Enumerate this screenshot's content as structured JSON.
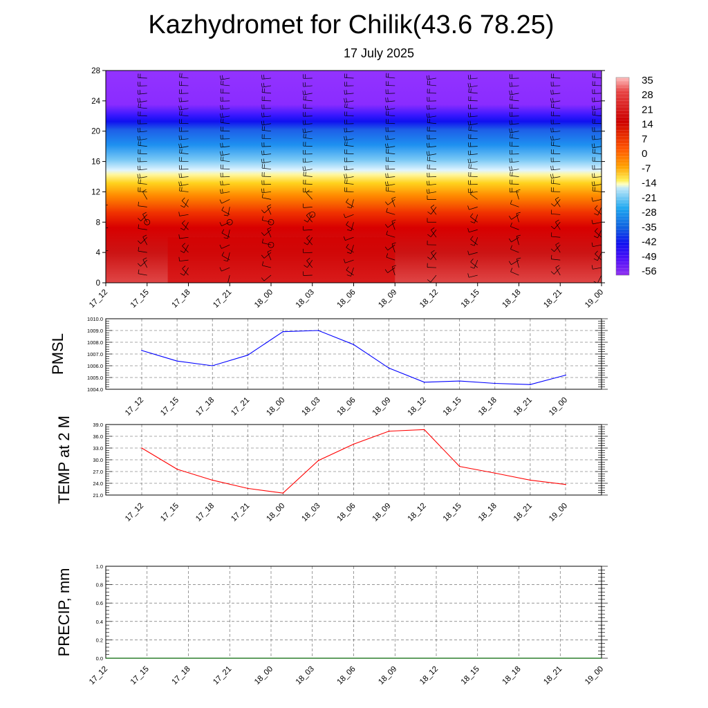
{
  "title": "Kazhydromet for Chilik(43.6 78.25)",
  "subtitle": "17 July 2025",
  "colors": {
    "pressure_line": "#0000ff",
    "temperature_line": "#ff0000",
    "precip_line": "#006400",
    "grid": "#555555"
  },
  "chart_data": [
    {
      "type": "heatmap",
      "name": "temperature-cross-section",
      "x": [
        "17_12",
        "17_15",
        "17_18",
        "17_21",
        "18_00",
        "18_03",
        "18_06",
        "18_09",
        "18_12",
        "18_15",
        "18_18",
        "18_21",
        "19_00"
      ],
      "yticks": [
        "0",
        "4",
        "8",
        "12",
        "16",
        "20",
        "24",
        "28"
      ],
      "ylim": [
        0,
        28
      ],
      "colorbar": {
        "labels": [
          "35",
          "28",
          "21",
          "14",
          "7",
          "0",
          "-7",
          "-14",
          "-21",
          "-28",
          "-35",
          "-42",
          "-49",
          "-56"
        ],
        "range": [
          -60,
          38
        ]
      },
      "overlay": "wind barbs",
      "legend": "right"
    },
    {
      "type": "line",
      "ylabel": "PMSL",
      "x": [
        "17_12",
        "17_15",
        "17_18",
        "17_21",
        "18_00",
        "18_03",
        "18_06",
        "18_09",
        "18_12",
        "18_15",
        "18_18",
        "18_21",
        "19_00"
      ],
      "values": [
        1007.3,
        1006.4,
        1006.0,
        1006.9,
        1008.9,
        1009.0,
        1007.8,
        1005.8,
        1004.6,
        1004.7,
        1004.5,
        1004.4,
        1005.2
      ],
      "yticks": [
        "1004.0",
        "1005.0",
        "1006.0",
        "1007.0",
        "1008.0",
        "1009.0",
        "1010.0"
      ],
      "ylim": [
        1004.0,
        1010.0
      ],
      "grid": true
    },
    {
      "type": "line",
      "ylabel": "TEMP at 2 M",
      "x": [
        "17_12",
        "17_15",
        "17_18",
        "17_21",
        "18_00",
        "18_03",
        "18_06",
        "18_09",
        "18_12",
        "18_15",
        "18_18",
        "18_21",
        "19_00"
      ],
      "values": [
        33.0,
        27.6,
        24.8,
        22.7,
        21.5,
        29.8,
        34.0,
        37.3,
        37.7,
        28.3,
        26.6,
        24.8,
        23.7
      ],
      "yticks": [
        "21.0",
        "24.0",
        "27.0",
        "30.0",
        "33.0",
        "36.0",
        "39.0"
      ],
      "ylim": [
        21.0,
        39.0
      ],
      "grid": true
    },
    {
      "type": "line",
      "ylabel": "PRECIP, mm",
      "x": [
        "17_12",
        "17_15",
        "17_18",
        "17_21",
        "18_00",
        "18_03",
        "18_06",
        "18_09",
        "18_12",
        "18_15",
        "18_18",
        "18_21",
        "19_00"
      ],
      "values": [
        0.0,
        0.0,
        0.0,
        0.0,
        0.0,
        0.0,
        0.0,
        0.0,
        0.0,
        0.0,
        0.0,
        0.0,
        0.0
      ],
      "yticks": [
        "0.0",
        "0.2",
        "0.4",
        "0.6",
        "0.8",
        "1.0"
      ],
      "ylim": [
        0.0,
        1.0
      ],
      "grid": true
    }
  ]
}
